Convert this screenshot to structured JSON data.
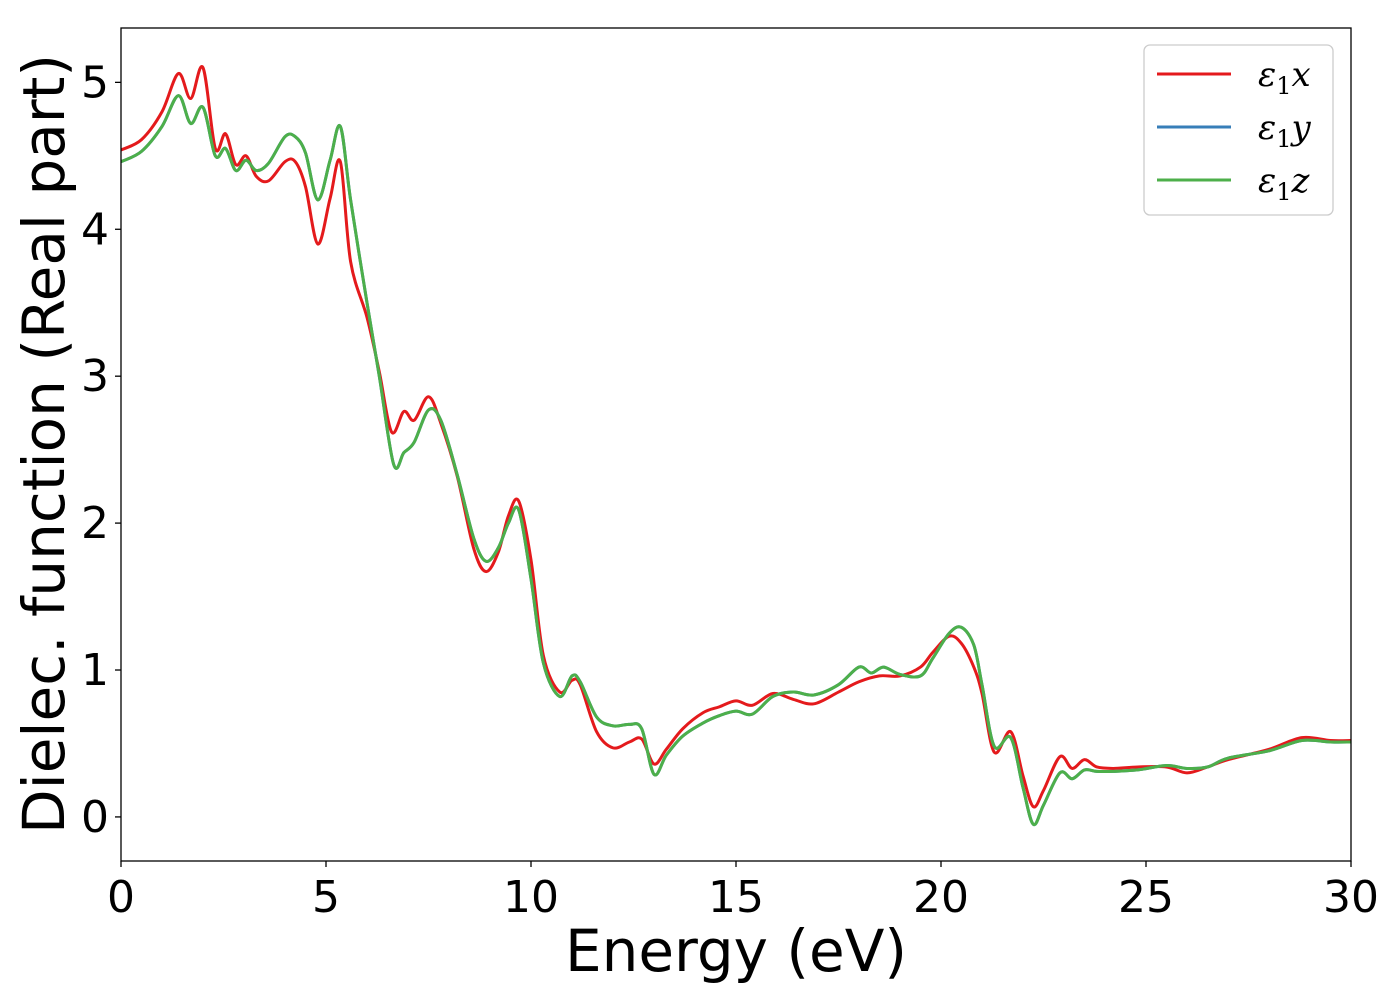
{
  "chart_data": {
    "type": "line",
    "xlabel": "Energy (eV)",
    "ylabel": "Dielec. function (Real part)",
    "xlim": [
      0,
      30
    ],
    "ylim": [
      -0.3,
      5.37
    ],
    "xticks": [
      0,
      5,
      10,
      15,
      20,
      25,
      30
    ],
    "yticks": [
      0,
      1,
      2,
      3,
      4,
      5
    ],
    "grid": false,
    "legend_position": "top-right",
    "series": [
      {
        "name": "ε₁x",
        "legend_base": "ε",
        "legend_sub": "1",
        "legend_var": "x",
        "color": "#e41a1c",
        "x": [
          0,
          0.5,
          1.0,
          1.4,
          1.7,
          2.0,
          2.3,
          2.55,
          2.8,
          3.05,
          3.3,
          3.6,
          4.0,
          4.25,
          4.5,
          4.8,
          5.1,
          5.35,
          5.6,
          6.0,
          6.3,
          6.6,
          6.9,
          7.15,
          7.5,
          7.8,
          8.2,
          8.6,
          8.9,
          9.2,
          9.45,
          9.7,
          10.0,
          10.3,
          10.7,
          11.0,
          11.2,
          11.6,
          12.0,
          12.4,
          12.7,
          13.0,
          13.3,
          13.7,
          14.2,
          14.6,
          15.0,
          15.4,
          15.9,
          16.4,
          16.9,
          17.5,
          18.0,
          18.5,
          19.0,
          19.5,
          19.8,
          20.2,
          20.5,
          20.8,
          21.0,
          21.3,
          21.7,
          22.0,
          22.25,
          22.5,
          22.9,
          23.2,
          23.5,
          23.8,
          24.2,
          24.8,
          25.5,
          26.0,
          26.5,
          27.0,
          28.0,
          28.8,
          29.5,
          30.0
        ],
        "y": [
          4.54,
          4.61,
          4.8,
          5.06,
          4.89,
          5.1,
          4.55,
          4.65,
          4.44,
          4.5,
          4.36,
          4.33,
          4.46,
          4.46,
          4.29,
          3.9,
          4.21,
          4.46,
          3.78,
          3.4,
          3.03,
          2.62,
          2.76,
          2.7,
          2.86,
          2.68,
          2.32,
          1.83,
          1.67,
          1.8,
          2.05,
          2.15,
          1.75,
          1.1,
          0.85,
          0.93,
          0.9,
          0.58,
          0.47,
          0.51,
          0.53,
          0.36,
          0.46,
          0.6,
          0.71,
          0.75,
          0.79,
          0.76,
          0.84,
          0.8,
          0.77,
          0.85,
          0.92,
          0.96,
          0.96,
          1.02,
          1.12,
          1.23,
          1.18,
          1.02,
          0.84,
          0.44,
          0.58,
          0.28,
          0.07,
          0.18,
          0.41,
          0.33,
          0.39,
          0.34,
          0.33,
          0.34,
          0.34,
          0.3,
          0.34,
          0.39,
          0.46,
          0.54,
          0.52,
          0.52
        ]
      },
      {
        "name": "ε₁y",
        "legend_base": "ε",
        "legend_sub": "1",
        "legend_var": "y",
        "color": "#377eb8",
        "x": [
          0,
          0.5,
          1.0,
          1.4,
          1.7,
          2.0,
          2.3,
          2.55,
          2.8,
          3.05,
          3.3,
          3.6,
          4.0,
          4.25,
          4.5,
          4.8,
          5.1,
          5.35,
          5.6,
          6.0,
          6.3,
          6.65,
          6.9,
          7.15,
          7.5,
          7.8,
          8.2,
          8.6,
          8.9,
          9.2,
          9.45,
          9.7,
          10.0,
          10.3,
          10.7,
          11.0,
          11.2,
          11.6,
          12.0,
          12.4,
          12.7,
          13.0,
          13.3,
          13.7,
          14.2,
          14.6,
          15.0,
          15.4,
          15.9,
          16.4,
          16.9,
          17.5,
          18.0,
          18.3,
          18.6,
          19.0,
          19.5,
          19.8,
          20.2,
          20.5,
          20.8,
          21.0,
          21.3,
          21.7,
          22.0,
          22.25,
          22.5,
          22.9,
          23.2,
          23.5,
          23.8,
          24.2,
          24.8,
          25.5,
          26.0,
          26.5,
          27.0,
          28.0,
          28.8,
          29.5,
          30.0
        ],
        "y": [
          4.46,
          4.53,
          4.7,
          4.91,
          4.72,
          4.83,
          4.5,
          4.55,
          4.4,
          4.47,
          4.4,
          4.45,
          4.63,
          4.63,
          4.52,
          4.2,
          4.47,
          4.7,
          4.2,
          3.5,
          3.0,
          2.4,
          2.48,
          2.55,
          2.77,
          2.7,
          2.33,
          1.9,
          1.74,
          1.83,
          2.0,
          2.09,
          1.62,
          1.05,
          0.82,
          0.96,
          0.92,
          0.68,
          0.62,
          0.63,
          0.6,
          0.29,
          0.42,
          0.55,
          0.64,
          0.69,
          0.72,
          0.7,
          0.82,
          0.85,
          0.83,
          0.9,
          1.02,
          0.98,
          1.02,
          0.97,
          0.96,
          1.08,
          1.25,
          1.29,
          1.17,
          0.9,
          0.48,
          0.54,
          0.2,
          -0.05,
          0.08,
          0.3,
          0.26,
          0.32,
          0.31,
          0.31,
          0.32,
          0.35,
          0.33,
          0.34,
          0.4,
          0.45,
          0.52,
          0.51,
          0.51
        ]
      },
      {
        "name": "ε₁z",
        "legend_base": "ε",
        "legend_sub": "1",
        "legend_var": "z",
        "color": "#4daf4a",
        "x": [
          0,
          0.5,
          1.0,
          1.4,
          1.7,
          2.0,
          2.3,
          2.55,
          2.8,
          3.05,
          3.3,
          3.6,
          4.0,
          4.25,
          4.5,
          4.8,
          5.1,
          5.35,
          5.6,
          6.0,
          6.3,
          6.65,
          6.9,
          7.15,
          7.5,
          7.8,
          8.2,
          8.6,
          8.9,
          9.2,
          9.45,
          9.7,
          10.0,
          10.3,
          10.7,
          11.0,
          11.2,
          11.6,
          12.0,
          12.4,
          12.7,
          13.0,
          13.3,
          13.7,
          14.2,
          14.6,
          15.0,
          15.4,
          15.9,
          16.4,
          16.9,
          17.5,
          18.0,
          18.3,
          18.6,
          19.0,
          19.5,
          19.8,
          20.2,
          20.5,
          20.8,
          21.0,
          21.3,
          21.7,
          22.0,
          22.25,
          22.5,
          22.9,
          23.2,
          23.5,
          23.8,
          24.2,
          24.8,
          25.5,
          26.0,
          26.5,
          27.0,
          28.0,
          28.8,
          29.5,
          30.0
        ],
        "y": [
          4.46,
          4.53,
          4.7,
          4.91,
          4.72,
          4.83,
          4.5,
          4.55,
          4.4,
          4.47,
          4.4,
          4.45,
          4.63,
          4.63,
          4.52,
          4.2,
          4.47,
          4.7,
          4.2,
          3.5,
          3.0,
          2.4,
          2.48,
          2.55,
          2.77,
          2.7,
          2.33,
          1.9,
          1.74,
          1.83,
          2.0,
          2.09,
          1.62,
          1.05,
          0.82,
          0.96,
          0.92,
          0.68,
          0.62,
          0.63,
          0.6,
          0.29,
          0.42,
          0.55,
          0.64,
          0.69,
          0.72,
          0.7,
          0.82,
          0.85,
          0.83,
          0.9,
          1.02,
          0.98,
          1.02,
          0.97,
          0.96,
          1.08,
          1.25,
          1.29,
          1.17,
          0.9,
          0.48,
          0.54,
          0.2,
          -0.05,
          0.08,
          0.3,
          0.26,
          0.32,
          0.31,
          0.31,
          0.32,
          0.35,
          0.33,
          0.34,
          0.4,
          0.45,
          0.52,
          0.51,
          0.51
        ]
      }
    ]
  }
}
